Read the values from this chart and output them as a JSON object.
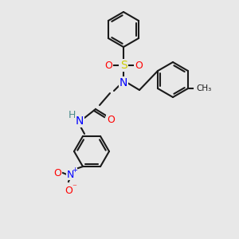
{
  "bg_color": "#e8e8e8",
  "bond_color": "#1a1a1a",
  "bond_width": 1.5,
  "atom_colors": {
    "S": "#cccc00",
    "N": "#0000ff",
    "O": "#ff0000",
    "H": "#4a8a8a",
    "C_methyl": "#1a1a1a"
  },
  "font_size": 9
}
